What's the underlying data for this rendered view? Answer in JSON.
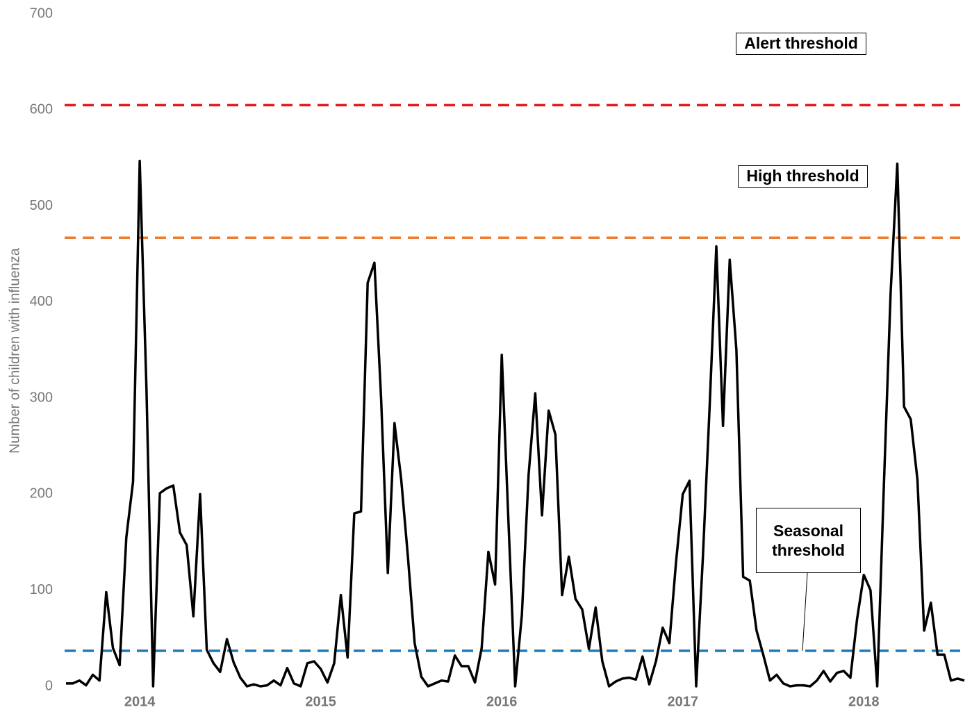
{
  "chart_data": {
    "type": "line",
    "y_label": "Number of children with influenza",
    "categories": [
      null,
      null,
      null,
      null,
      null,
      null,
      null,
      null,
      null,
      null,
      null,
      "2014",
      null,
      null,
      null,
      null,
      null,
      null,
      null,
      null,
      null,
      null,
      null,
      null,
      null,
      null,
      null,
      null,
      null,
      null,
      null,
      null,
      null,
      null,
      null,
      null,
      null,
      null,
      "2015",
      null,
      null,
      null,
      null,
      null,
      null,
      null,
      null,
      null,
      null,
      null,
      null,
      null,
      null,
      null,
      null,
      null,
      null,
      null,
      null,
      null,
      null,
      null,
      null,
      null,
      null,
      "2016",
      null,
      null,
      null,
      null,
      null,
      null,
      null,
      null,
      null,
      null,
      null,
      null,
      null,
      null,
      null,
      null,
      null,
      null,
      null,
      null,
      null,
      null,
      null,
      null,
      null,
      null,
      "2017",
      null,
      null,
      null,
      null,
      null,
      null,
      null,
      null,
      null,
      null,
      null,
      null,
      null,
      null,
      null,
      null,
      null,
      null,
      null,
      null,
      null,
      null,
      null,
      null,
      null,
      null,
      "2018",
      null,
      null,
      null,
      null,
      null,
      null,
      null,
      null,
      null,
      null,
      null,
      null,
      null,
      null,
      null
    ],
    "series": [
      {
        "color": "#000000",
        "values": [
          3,
          3,
          6,
          1,
          12,
          6,
          98,
          40,
          22,
          155,
          213,
          547,
          310,
          0,
          201,
          206,
          209,
          160,
          147,
          73,
          200,
          38,
          24,
          15,
          49,
          25,
          9,
          0,
          2,
          0,
          1,
          6,
          1,
          19,
          3,
          0,
          24,
          26,
          18,
          4,
          24,
          95,
          30,
          180,
          182,
          420,
          441,
          300,
          118,
          274,
          215,
          135,
          45,
          10,
          0,
          3,
          6,
          5,
          32,
          21,
          21,
          4,
          40,
          140,
          106,
          345,
          170,
          0,
          74,
          220,
          305,
          178,
          287,
          262,
          95,
          135,
          91,
          80,
          39,
          82,
          26,
          0,
          5,
          8,
          9,
          7,
          31,
          2,
          26,
          61,
          45,
          130,
          200,
          214,
          0,
          135,
          290,
          458,
          271,
          444,
          350,
          114,
          110,
          58,
          33,
          6,
          12,
          3,
          0,
          1,
          1,
          0,
          6,
          16,
          5,
          14,
          16,
          9,
          70,
          116,
          100,
          0,
          210,
          410,
          544,
          291,
          278,
          215,
          58,
          87,
          33,
          33,
          6,
          8,
          6
        ]
      }
    ],
    "thresholds": [
      {
        "label": "Alert threshold",
        "value": 605,
        "color": "#e31a1c"
      },
      {
        "label": "High threshold",
        "value": 467,
        "color": "#ed7d31"
      },
      {
        "label": "Seasonal threshold",
        "value": 37,
        "color": "#1f77b4"
      }
    ],
    "ylim": [
      0,
      700
    ],
    "yticks": [
      0,
      100,
      200,
      300,
      400,
      500,
      600,
      700
    ]
  }
}
